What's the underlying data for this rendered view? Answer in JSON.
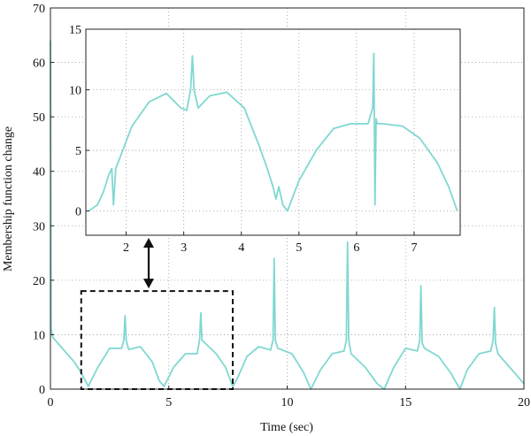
{
  "chart_data": [
    {
      "id": "main",
      "type": "line",
      "xlabel": "Time (sec)",
      "ylabel": "Membership function change",
      "xlim": [
        0,
        20
      ],
      "ylim": [
        0,
        70
      ],
      "xticks": [
        0,
        5,
        10,
        15,
        20
      ],
      "yticks": [
        0,
        10,
        20,
        30,
        40,
        50,
        60,
        70
      ],
      "grid": "dotted",
      "line_color": "#7fd8d0",
      "series": [
        {
          "x": [
            0.0,
            0.03,
            0.1,
            0.3,
            0.6,
            1.0,
            1.3,
            1.6,
            2.0,
            2.5,
            3.0,
            3.1,
            3.15,
            3.2,
            3.3,
            3.8,
            4.3,
            4.6,
            4.8,
            5.2,
            5.7,
            6.2,
            6.3,
            6.35,
            6.4,
            7.0,
            7.4,
            7.7,
            7.9,
            8.3,
            8.8,
            9.3,
            9.4,
            9.45,
            9.5,
            9.6,
            10.2,
            10.7,
            11.0,
            11.4,
            11.9,
            12.4,
            12.5,
            12.55,
            12.6,
            12.7,
            13.3,
            13.8,
            14.1,
            14.5,
            15.0,
            15.5,
            15.6,
            15.65,
            15.7,
            15.8,
            16.4,
            16.9,
            17.3,
            17.6,
            18.1,
            18.6,
            18.7,
            18.75,
            18.8,
            18.9,
            19.5,
            20.0
          ],
          "y": [
            64,
            11,
            9.5,
            8.5,
            7,
            5,
            3,
            0.5,
            4,
            7.5,
            7.5,
            9,
            13.5,
            9,
            7.3,
            7.8,
            5,
            1.5,
            0.5,
            4,
            6.5,
            6.5,
            9,
            14,
            9,
            6.5,
            4,
            0.5,
            2,
            6,
            7.8,
            7.2,
            9,
            24,
            9,
            7.5,
            6.5,
            3,
            0,
            3.5,
            6.5,
            7,
            9,
            27,
            9,
            6.5,
            4,
            1,
            0,
            4,
            7.5,
            7,
            9,
            19,
            8.5,
            7.5,
            6,
            3,
            0,
            3.5,
            6.5,
            7,
            9,
            15,
            8.5,
            6.5,
            3.5,
            1
          ]
        }
      ],
      "highlight_box": {
        "x_range": [
          1.3,
          7.7
        ],
        "y_range": [
          0,
          18
        ],
        "style": "dashed"
      }
    },
    {
      "id": "inset",
      "type": "line",
      "xlim": [
        1.3,
        7.8
      ],
      "ylim": [
        -2,
        15
      ],
      "xticks": [
        2,
        3,
        4,
        5,
        6,
        7
      ],
      "yticks": [
        0,
        5,
        10,
        15
      ],
      "grid": "dotted",
      "line_color": "#7fd8d0",
      "series": [
        {
          "x": [
            1.35,
            1.5,
            1.6,
            1.7,
            1.75,
            1.78,
            1.82,
            1.9,
            2.1,
            2.4,
            2.7,
            2.95,
            3.05,
            3.12,
            3.15,
            3.18,
            3.25,
            3.45,
            3.75,
            4.05,
            4.3,
            4.45,
            4.55,
            4.6,
            4.65,
            4.72,
            4.8,
            5.0,
            5.3,
            5.6,
            5.9,
            6.2,
            6.28,
            6.3,
            6.32,
            6.34,
            6.36,
            6.45,
            6.8,
            7.1,
            7.4,
            7.6,
            7.75
          ],
          "y": [
            0,
            0.5,
            1.5,
            3,
            3.5,
            0.5,
            3.5,
            4.5,
            7,
            9,
            9.7,
            8.5,
            8.3,
            10,
            12.8,
            10,
            8.5,
            9.5,
            9.8,
            8.5,
            5.5,
            3.5,
            2,
            1,
            2,
            0.5,
            0,
            2.5,
            5,
            6.8,
            7.2,
            7.2,
            8.5,
            13,
            0.5,
            7.6,
            7.2,
            7.2,
            7,
            6,
            4,
            2,
            0
          ]
        }
      ]
    }
  ]
}
